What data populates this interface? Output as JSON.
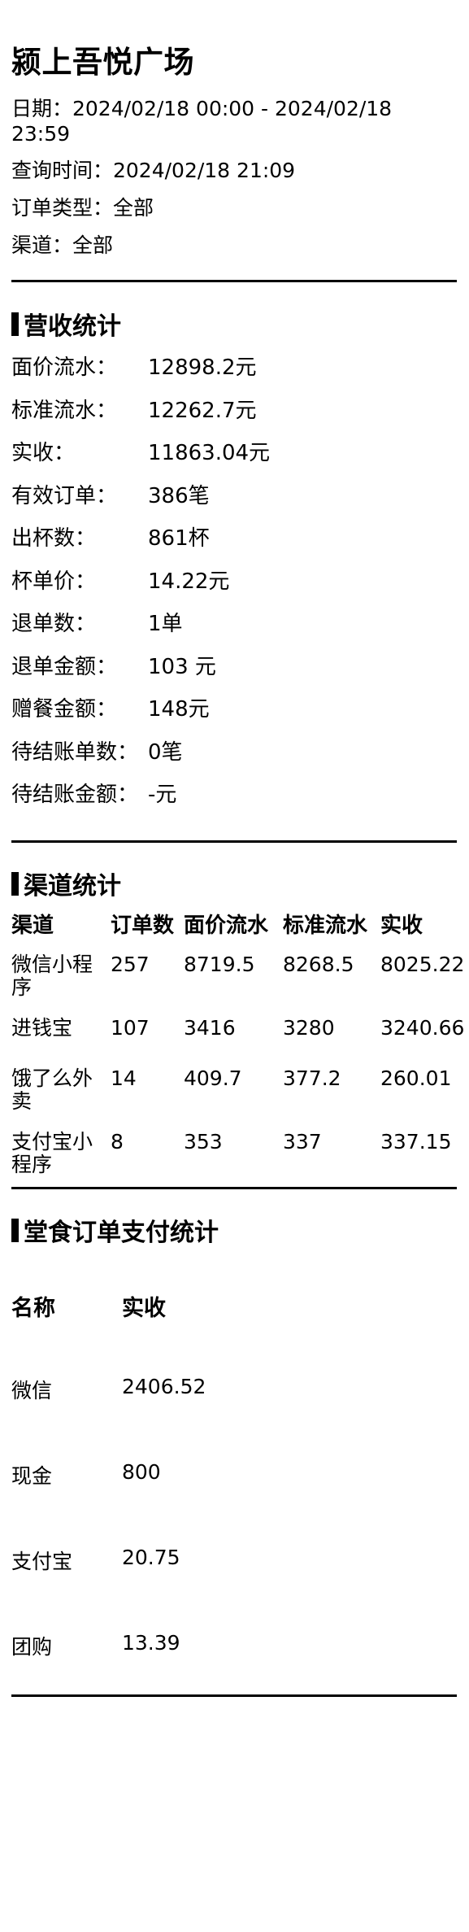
{
  "store": {
    "name": "颍上吾悦广场"
  },
  "meta": {
    "date_range": "日期：2024/02/18 00:00 - 2024/02/18 23:59",
    "query_time": "查询时间：2024/02/18 21:09",
    "order_type": "订单类型：全部",
    "channel": "渠道：全部"
  },
  "revenue": {
    "title": "营收统计",
    "rows": [
      {
        "label": "面价流水：",
        "value": "12898.2元"
      },
      {
        "label": "标准流水：",
        "value": "12262.7元"
      },
      {
        "label": "实收：",
        "value": "11863.04元"
      },
      {
        "label": "有效订单：",
        "value": "386笔"
      },
      {
        "label": "出杯数：",
        "value": "861杯"
      },
      {
        "label": "杯单价：",
        "value": "14.22元"
      },
      {
        "label": "退单数：",
        "value": "1单"
      },
      {
        "label": "退单金额：",
        "value": "103 元"
      },
      {
        "label": "赠餐金额：",
        "value": "148元"
      },
      {
        "label": "待结账单数：",
        "value": "0笔"
      },
      {
        "label": "待结账金额：",
        "value": "-元"
      }
    ]
  },
  "channels": {
    "title": "渠道统计",
    "headers": [
      "渠道",
      "订单数",
      "面价流水",
      "标准流水",
      "实收"
    ],
    "rows": [
      [
        "微信小程序",
        "257",
        "8719.5",
        "8268.5",
        "8025.22"
      ],
      [
        "进钱宝",
        "107",
        "3416",
        "3280",
        "3240.66"
      ],
      [
        "饿了么外卖",
        "14",
        "409.7",
        "377.2",
        "260.01"
      ],
      [
        "支付宝小程序",
        "8",
        "353",
        "337",
        "337.15"
      ]
    ]
  },
  "dine_in": {
    "title": "堂食订单支付统计",
    "headers": [
      "名称",
      "实收"
    ],
    "rows": [
      [
        "微信",
        "2406.52"
      ],
      [
        "现金",
        "800"
      ],
      [
        "支付宝",
        "20.75"
      ],
      [
        "团购",
        "13.39"
      ]
    ]
  }
}
